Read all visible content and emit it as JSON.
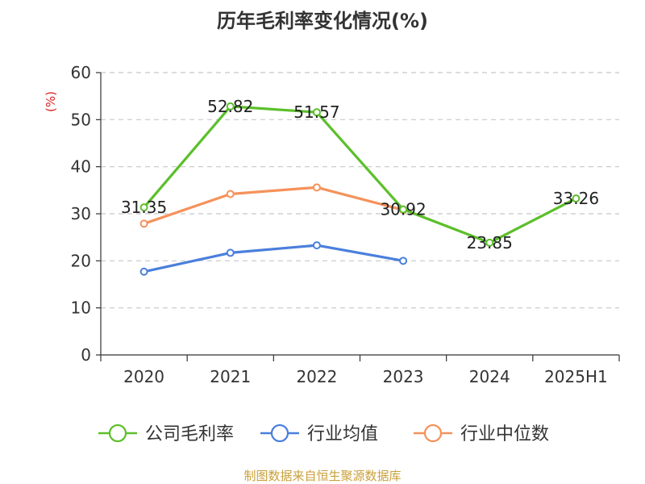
{
  "chart_data": {
    "type": "line",
    "title": "历年毛利率变化情况(%)",
    "ylabel": "(%)",
    "xlabel": "",
    "categories": [
      "2020",
      "2021",
      "2022",
      "2023",
      "2024",
      "2025H1"
    ],
    "ylim": [
      0,
      60
    ],
    "yticks": [
      0,
      10,
      20,
      30,
      40,
      50,
      60
    ],
    "grid": true,
    "legend_position": "bottom",
    "series": [
      {
        "name": "公司毛利率",
        "color": "#5cbf2a",
        "values": [
          31.35,
          52.82,
          51.57,
          30.92,
          23.85,
          33.26
        ],
        "labels": [
          "31.35",
          "52.82",
          "51.57",
          "30.92",
          "23.85",
          "33.26"
        ]
      },
      {
        "name": "行业均值",
        "color": "#4a7fdc",
        "values": [
          17.7,
          21.7,
          23.3,
          20.0,
          null,
          null
        ]
      },
      {
        "name": "行业中位数",
        "color": "#f5925a",
        "values": [
          27.9,
          34.2,
          35.6,
          30.8,
          null,
          null
        ]
      }
    ]
  },
  "source_note": "制图数据来自恒生聚源数据库"
}
